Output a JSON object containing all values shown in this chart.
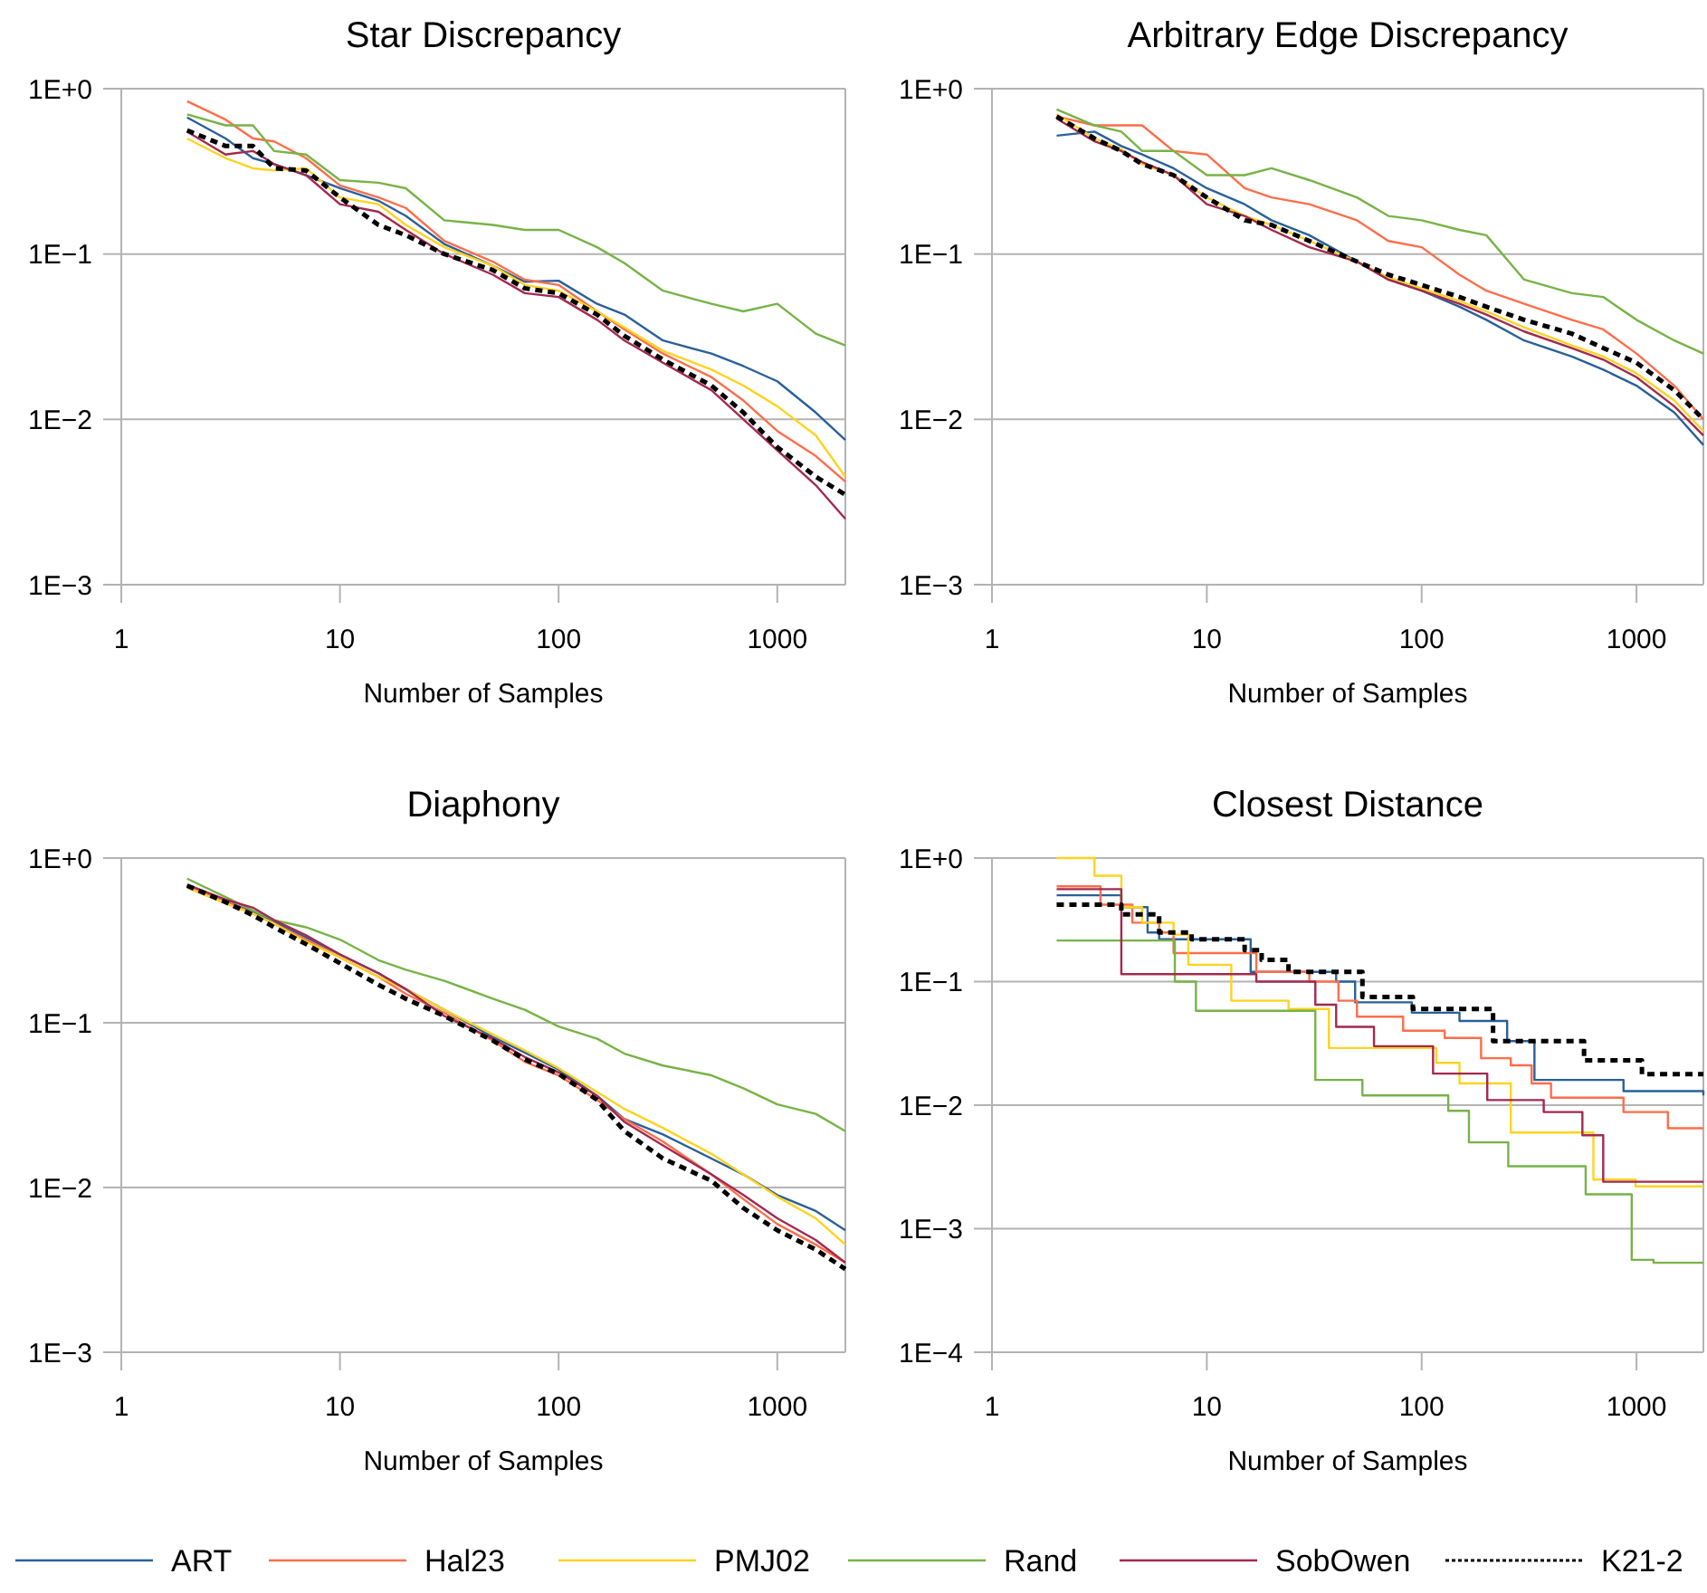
{
  "chart_data": [
    {
      "type": "line",
      "title": "Star Discrepancy",
      "xlabel": "Number of Samples",
      "log": "xy",
      "grid": "y",
      "legend": "bottom",
      "xlim": [
        1,
        2048
      ],
      "xticks": [
        1,
        10,
        100,
        1000
      ],
      "ylim": [
        0.001,
        1
      ],
      "yticks": [
        {
          "value": 1,
          "label": "1E+0"
        },
        {
          "value": 0.1,
          "label": "1E−1"
        },
        {
          "value": 0.01,
          "label": "1E−2"
        },
        {
          "value": 0.001,
          "label": "1E−3"
        }
      ],
      "x": [
        2,
        3,
        4,
        5,
        7,
        10,
        15,
        20,
        30,
        50,
        70,
        100,
        150,
        200,
        300,
        500,
        700,
        1000,
        1500,
        2048
      ],
      "series": [
        {
          "name": "ART",
          "color": "#2a6099",
          "values": [
            0.67,
            0.5,
            0.38,
            0.35,
            0.3,
            0.25,
            0.21,
            0.17,
            0.115,
            0.085,
            0.068,
            0.069,
            0.05,
            0.043,
            0.03,
            0.025,
            0.021,
            0.017,
            0.011,
            0.0075
          ]
        },
        {
          "name": "Hal23",
          "color": "#ff6d4a",
          "values": [
            0.84,
            0.65,
            0.5,
            0.48,
            0.38,
            0.26,
            0.22,
            0.19,
            0.12,
            0.09,
            0.07,
            0.065,
            0.045,
            0.035,
            0.025,
            0.018,
            0.013,
            0.0085,
            0.006,
            0.0042
          ]
        },
        {
          "name": "PMJ02",
          "color": "#ffd320",
          "values": [
            0.5,
            0.38,
            0.33,
            0.32,
            0.33,
            0.22,
            0.2,
            0.15,
            0.11,
            0.085,
            0.065,
            0.06,
            0.045,
            0.036,
            0.026,
            0.02,
            0.016,
            0.012,
            0.008,
            0.0045
          ]
        },
        {
          "name": "Rand",
          "color": "#77b347",
          "values": [
            0.7,
            0.6,
            0.6,
            0.42,
            0.4,
            0.28,
            0.27,
            0.25,
            0.16,
            0.15,
            0.14,
            0.14,
            0.11,
            0.088,
            0.06,
            0.05,
            0.045,
            0.05,
            0.033,
            0.028
          ]
        },
        {
          "name": "SobOwen",
          "color": "#a3294f",
          "values": [
            0.55,
            0.4,
            0.42,
            0.35,
            0.3,
            0.2,
            0.18,
            0.14,
            0.1,
            0.075,
            0.058,
            0.055,
            0.04,
            0.03,
            0.022,
            0.015,
            0.01,
            0.0065,
            0.004,
            0.0025
          ]
        },
        {
          "name": "K21-2",
          "color": "#000000",
          "line_style": "dashed",
          "values": [
            0.56,
            0.45,
            0.45,
            0.33,
            0.32,
            0.22,
            0.15,
            0.13,
            0.1,
            0.08,
            0.062,
            0.058,
            0.043,
            0.032,
            0.023,
            0.016,
            0.011,
            0.0068,
            0.0045,
            0.0035
          ]
        }
      ]
    },
    {
      "type": "line",
      "title": "Arbitrary Edge Discrepancy",
      "xlabel": "Number of Samples",
      "log": "xy",
      "grid": "y",
      "xlim": [
        1,
        2048
      ],
      "xticks": [
        1,
        10,
        100,
        1000
      ],
      "ylim": [
        0.001,
        1
      ],
      "yticks": [
        {
          "value": 1,
          "label": "1E+0"
        },
        {
          "value": 0.1,
          "label": "1E−1"
        },
        {
          "value": 0.01,
          "label": "1E−2"
        },
        {
          "value": 0.001,
          "label": "1E−3"
        }
      ],
      "x": [
        2,
        3,
        4,
        5,
        7,
        10,
        15,
        20,
        30,
        50,
        70,
        100,
        150,
        200,
        300,
        500,
        700,
        1000,
        1500,
        2048
      ],
      "series": [
        {
          "name": "ART",
          "color": "#2a6099",
          "values": [
            0.52,
            0.55,
            0.45,
            0.4,
            0.33,
            0.25,
            0.2,
            0.16,
            0.13,
            0.09,
            0.07,
            0.06,
            0.048,
            0.04,
            0.03,
            0.024,
            0.02,
            0.016,
            0.011,
            0.007
          ]
        },
        {
          "name": "Hal23",
          "color": "#ff6d4a",
          "values": [
            0.68,
            0.6,
            0.6,
            0.6,
            0.42,
            0.4,
            0.25,
            0.22,
            0.2,
            0.16,
            0.12,
            0.11,
            0.075,
            0.06,
            0.05,
            0.04,
            0.035,
            0.025,
            0.016,
            0.01
          ]
        },
        {
          "name": "PMJ02",
          "color": "#ffd320",
          "values": [
            0.7,
            0.5,
            0.43,
            0.35,
            0.3,
            0.22,
            0.17,
            0.15,
            0.12,
            0.09,
            0.072,
            0.062,
            0.052,
            0.045,
            0.036,
            0.028,
            0.024,
            0.019,
            0.013,
            0.0085
          ]
        },
        {
          "name": "Rand",
          "color": "#77b347",
          "values": [
            0.75,
            0.6,
            0.55,
            0.42,
            0.42,
            0.3,
            0.3,
            0.33,
            0.28,
            0.22,
            0.17,
            0.16,
            0.14,
            0.13,
            0.07,
            0.058,
            0.055,
            0.04,
            0.03,
            0.025
          ]
        },
        {
          "name": "SobOwen",
          "color": "#a3294f",
          "values": [
            0.66,
            0.48,
            0.42,
            0.36,
            0.3,
            0.2,
            0.17,
            0.14,
            0.11,
            0.09,
            0.07,
            0.06,
            0.05,
            0.043,
            0.034,
            0.027,
            0.023,
            0.018,
            0.012,
            0.008
          ]
        },
        {
          "name": "K21-2",
          "color": "#000000",
          "line_style": "dashed",
          "values": [
            0.68,
            0.5,
            0.42,
            0.35,
            0.3,
            0.22,
            0.16,
            0.15,
            0.12,
            0.09,
            0.075,
            0.065,
            0.055,
            0.048,
            0.04,
            0.033,
            0.027,
            0.022,
            0.015,
            0.01
          ]
        }
      ]
    },
    {
      "type": "line",
      "title": "Diaphony",
      "xlabel": "Number of Samples",
      "log": "xy",
      "grid": "y",
      "xlim": [
        1,
        2048
      ],
      "xticks": [
        1,
        10,
        100,
        1000
      ],
      "ylim": [
        0.001,
        1
      ],
      "yticks": [
        {
          "value": 1,
          "label": "1E+0"
        },
        {
          "value": 0.1,
          "label": "1E−1"
        },
        {
          "value": 0.01,
          "label": "1E−2"
        },
        {
          "value": 0.001,
          "label": "1E−3"
        }
      ],
      "x": [
        2,
        3,
        4,
        5,
        7,
        10,
        15,
        20,
        30,
        50,
        70,
        100,
        150,
        200,
        300,
        500,
        700,
        1000,
        1500,
        2048
      ],
      "series": [
        {
          "name": "ART",
          "color": "#2a6099",
          "values": [
            0.68,
            0.55,
            0.47,
            0.41,
            0.33,
            0.26,
            0.2,
            0.16,
            0.12,
            0.082,
            0.066,
            0.052,
            0.036,
            0.026,
            0.021,
            0.015,
            0.012,
            0.009,
            0.0072,
            0.0055
          ]
        },
        {
          "name": "Hal23",
          "color": "#ff6d4a",
          "values": [
            0.68,
            0.55,
            0.46,
            0.4,
            0.32,
            0.25,
            0.19,
            0.15,
            0.115,
            0.078,
            0.058,
            0.048,
            0.034,
            0.026,
            0.019,
            0.012,
            0.0085,
            0.006,
            0.0045,
            0.0035
          ]
        },
        {
          "name": "PMJ02",
          "color": "#ffd320",
          "values": [
            0.66,
            0.53,
            0.46,
            0.4,
            0.31,
            0.25,
            0.19,
            0.16,
            0.12,
            0.085,
            0.068,
            0.053,
            0.038,
            0.03,
            0.023,
            0.016,
            0.012,
            0.0088,
            0.0065,
            0.0045
          ]
        },
        {
          "name": "Rand",
          "color": "#77b347",
          "values": [
            0.75,
            0.58,
            0.48,
            0.42,
            0.38,
            0.32,
            0.24,
            0.21,
            0.18,
            0.14,
            0.12,
            0.095,
            0.08,
            0.065,
            0.055,
            0.048,
            0.04,
            0.032,
            0.028,
            0.022
          ]
        },
        {
          "name": "SobOwen",
          "color": "#a3294f",
          "values": [
            0.69,
            0.56,
            0.5,
            0.42,
            0.34,
            0.26,
            0.2,
            0.16,
            0.11,
            0.08,
            0.062,
            0.05,
            0.036,
            0.025,
            0.018,
            0.012,
            0.009,
            0.0065,
            0.0048,
            0.0035
          ]
        },
        {
          "name": "K21-2",
          "color": "#000000",
          "line_style": "dashed",
          "values": [
            0.68,
            0.54,
            0.45,
            0.38,
            0.3,
            0.23,
            0.17,
            0.14,
            0.11,
            0.078,
            0.06,
            0.049,
            0.034,
            0.022,
            0.015,
            0.011,
            0.0075,
            0.0055,
            0.0042,
            0.0032
          ]
        }
      ]
    },
    {
      "type": "step",
      "title": "Closest Distance",
      "xlabel": "Number of Samples",
      "log": "xy",
      "grid": "y",
      "xlim": [
        1,
        2048
      ],
      "xticks": [
        1,
        10,
        100,
        1000
      ],
      "ylim": [
        0.0001,
        1
      ],
      "yticks": [
        {
          "value": 1,
          "label": "1E+0"
        },
        {
          "value": 0.1,
          "label": "1E−1"
        },
        {
          "value": 0.01,
          "label": "1E−2"
        },
        {
          "value": 0.001,
          "label": "1E−3"
        },
        {
          "value": 0.0001,
          "label": "1E−4"
        }
      ],
      "series": [
        {
          "name": "ART",
          "color": "#2a6099",
          "x": [
            2,
            3.2,
            4,
            5.3,
            6,
            16,
            40,
            49,
            90,
            150,
            250,
            335,
            870,
            2048
          ],
          "values": [
            0.5,
            0.5,
            0.4,
            0.25,
            0.22,
            0.12,
            0.1,
            0.068,
            0.056,
            0.048,
            0.033,
            0.016,
            0.013,
            0.012
          ]
        },
        {
          "name": "Hal23",
          "color": "#ff6d4a",
          "x": [
            2,
            3.2,
            4.5,
            6,
            7,
            17,
            30,
            41,
            50,
            82,
            128,
            189,
            260,
            325,
            400,
            870,
            1400,
            2048
          ],
          "values": [
            0.59,
            0.42,
            0.3,
            0.25,
            0.17,
            0.12,
            0.1,
            0.07,
            0.052,
            0.04,
            0.035,
            0.024,
            0.021,
            0.015,
            0.0115,
            0.0088,
            0.0065,
            0.0065
          ]
        },
        {
          "name": "PMJ02",
          "color": "#ffd320",
          "x": [
            2,
            3,
            4,
            5,
            7,
            8.2,
            13,
            24,
            37,
            117,
            150,
            260,
            630,
            990,
            2048
          ],
          "values": [
            1.0,
            0.72,
            0.4,
            0.3,
            0.24,
            0.137,
            0.07,
            0.06,
            0.029,
            0.022,
            0.015,
            0.006,
            0.0025,
            0.0022,
            0.0022
          ]
        },
        {
          "name": "Rand",
          "color": "#77b347",
          "x": [
            2,
            6,
            7.1,
            8.9,
            32,
            53,
            133,
            166,
            253,
            580,
            950,
            1200,
            2048
          ],
          "values": [
            0.215,
            0.215,
            0.1,
            0.058,
            0.016,
            0.012,
            0.009,
            0.005,
            0.0032,
            0.0019,
            0.00056,
            0.00053,
            0.00053
          ]
        },
        {
          "name": "SobOwen",
          "color": "#a3294f",
          "x": [
            2,
            3,
            4,
            17,
            32,
            40,
            60,
            113,
            202,
            370,
            560,
            700,
            2048
          ],
          "values": [
            0.56,
            0.56,
            0.115,
            0.1,
            0.065,
            0.043,
            0.03,
            0.018,
            0.011,
            0.0088,
            0.0057,
            0.0024,
            0.0024
          ]
        },
        {
          "name": "K21-2",
          "color": "#000000",
          "line_style": "dashed",
          "x": [
            2,
            3,
            4,
            6,
            8.5,
            15,
            18,
            24,
            53,
            91,
            215,
            570,
            1060,
            2048
          ],
          "values": [
            0.42,
            0.42,
            0.35,
            0.25,
            0.22,
            0.18,
            0.15,
            0.12,
            0.075,
            0.06,
            0.033,
            0.023,
            0.0178,
            0.0178
          ]
        }
      ]
    }
  ]
}
